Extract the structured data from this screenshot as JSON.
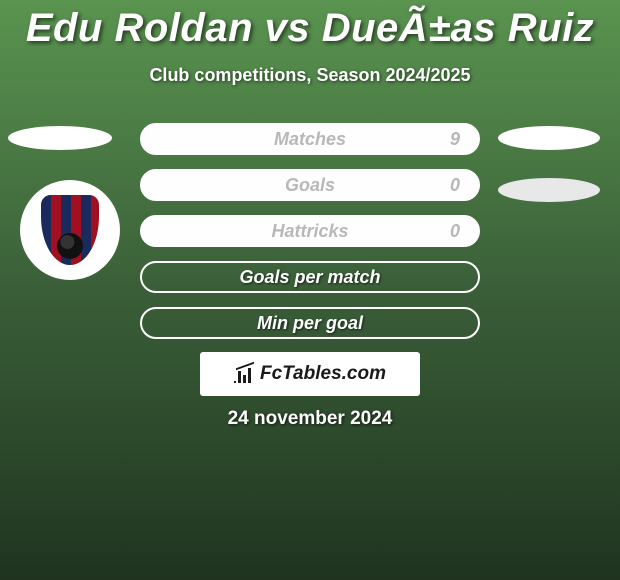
{
  "title": "Edu Roldan vs DueÃ±as Ruiz",
  "subtitle": "Club competitions, Season 2024/2025",
  "rows": [
    {
      "label": "Matches",
      "value": "9",
      "filled": true
    },
    {
      "label": "Goals",
      "value": "0",
      "filled": true
    },
    {
      "label": "Hattricks",
      "value": "0",
      "filled": true
    },
    {
      "label": "Goals per match",
      "value": "",
      "filled": false
    },
    {
      "label": "Min per goal",
      "value": "",
      "filled": false
    }
  ],
  "layout": {
    "row_top_start": 123,
    "row_spacing": 46
  },
  "logo_text": "FcTables.com",
  "date_text": "24 november 2024",
  "colors": {
    "bg_top": "#5a9450",
    "bg_bottom": "#1f331f",
    "bar_border": "#ffffff",
    "text": "#ffffff",
    "filled_text": "#b8b8b8",
    "logo_bg": "#ffffff",
    "logo_text": "#1a1a1a",
    "crest_blue": "#1a2a5c",
    "crest_red": "#a01020"
  },
  "typography": {
    "title_fontsize": 40,
    "subtitle_fontsize": 18,
    "row_fontsize": 18,
    "date_fontsize": 19
  }
}
